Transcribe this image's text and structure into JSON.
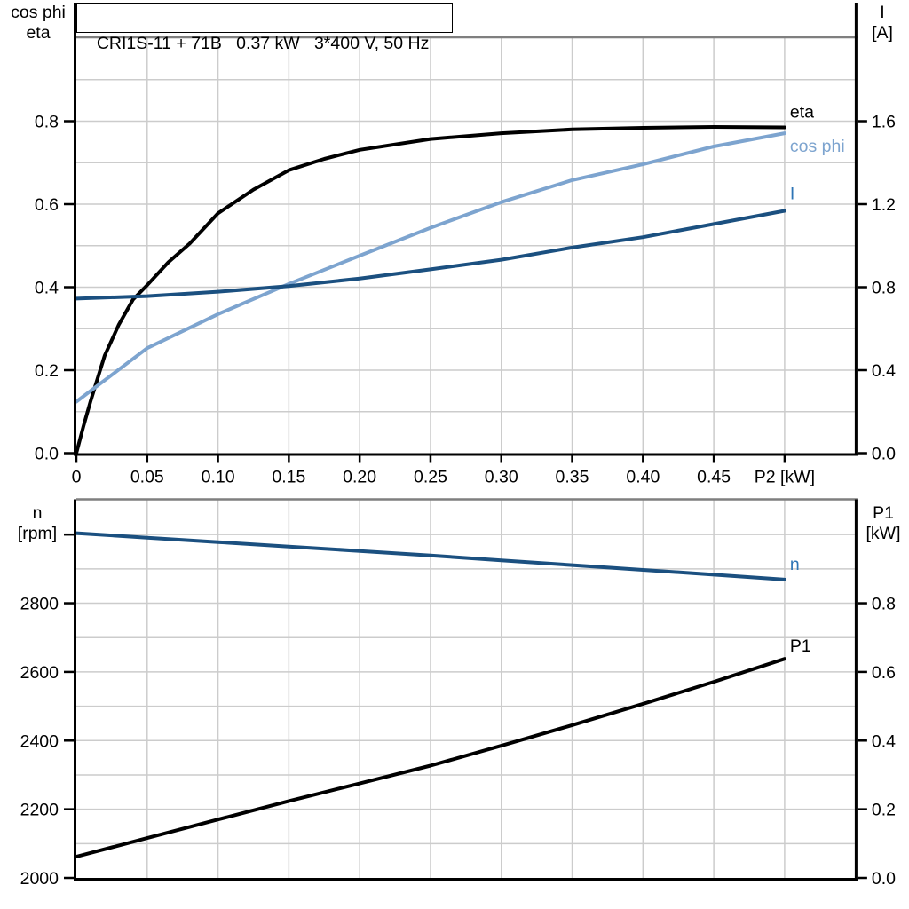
{
  "title": "CRI1S-11 + 71B   0.37 kW   3*400 V, 50 Hz",
  "colors": {
    "black": "#000000",
    "curve_dark_blue": "#1b5080",
    "curve_light_blue": "#7da4cf",
    "label_blue": "#2e74b5",
    "grid": "#cccccc",
    "plot_top_border": "#7f7f7f"
  },
  "chart_data": [
    {
      "type": "line",
      "title": "CRI1S-11 + 71B   0.37 kW   3*400 V, 50 Hz",
      "x_axis": {
        "label": "P2 [kW]",
        "min": 0,
        "max": 0.5495,
        "ticks": [
          {
            "v": 0,
            "label": "0"
          },
          {
            "v": 0.05,
            "label": "0.05"
          },
          {
            "v": 0.1,
            "label": "0.10"
          },
          {
            "v": 0.15,
            "label": "0.15"
          },
          {
            "v": 0.2,
            "label": "0.20"
          },
          {
            "v": 0.25,
            "label": "0.25"
          },
          {
            "v": 0.3,
            "label": "0.30"
          },
          {
            "v": 0.35,
            "label": "0.35"
          },
          {
            "v": 0.4,
            "label": "0.40"
          },
          {
            "v": 0.45,
            "label": "0.45"
          },
          {
            "v": 0.5,
            "label": "P2 [kW]"
          }
        ],
        "gridlines": [
          0.05,
          0.1,
          0.15,
          0.2,
          0.25,
          0.3,
          0.35,
          0.4,
          0.45,
          0.5
        ]
      },
      "y_axis_left": {
        "label_line1": "cos phi",
        "label_line2": "eta",
        "min": 0,
        "max": 1.0,
        "ticks": [
          {
            "v": 0.0,
            "label": "0.0"
          },
          {
            "v": 0.2,
            "label": "0.2"
          },
          {
            "v": 0.4,
            "label": "0.4"
          },
          {
            "v": 0.6,
            "label": "0.6"
          },
          {
            "v": 0.8,
            "label": "0.8"
          }
        ],
        "gridlines": [
          0.1,
          0.2,
          0.3,
          0.4,
          0.5,
          0.6,
          0.7,
          0.8,
          0.9
        ]
      },
      "y_axis_right": {
        "label_line1": "I",
        "label_line2": "[A]",
        "min": 0,
        "max": 2.0,
        "ticks": [
          {
            "v": 0.0,
            "label": "0.0"
          },
          {
            "v": 0.4,
            "label": "0.4"
          },
          {
            "v": 0.8,
            "label": "0.8"
          },
          {
            "v": 1.2,
            "label": "1.2"
          },
          {
            "v": 1.6,
            "label": "1.6"
          }
        ]
      },
      "series": [
        {
          "name": "eta",
          "axis": "left",
          "color": "#000000",
          "label_color": "#000000",
          "label_dy": -18,
          "x": [
            0,
            0.005,
            0.01,
            0.015,
            0.02,
            0.03,
            0.04,
            0.05,
            0.065,
            0.08,
            0.1,
            0.125,
            0.15,
            0.175,
            0.2,
            0.25,
            0.3,
            0.35,
            0.4,
            0.45,
            0.5
          ],
          "y": [
            0,
            0.065,
            0.125,
            0.18,
            0.235,
            0.31,
            0.37,
            0.405,
            0.46,
            0.505,
            0.578,
            0.635,
            0.682,
            0.709,
            0.731,
            0.757,
            0.771,
            0.78,
            0.784,
            0.786,
            0.785
          ]
        },
        {
          "name": "cos phi",
          "axis": "left",
          "color": "#7da4cf",
          "label_color": "#7da4cf",
          "label_dy": 14,
          "x": [
            0,
            0.05,
            0.1,
            0.15,
            0.2,
            0.25,
            0.3,
            0.35,
            0.4,
            0.45,
            0.5
          ],
          "y": [
            0.124,
            0.253,
            0.335,
            0.408,
            0.476,
            0.543,
            0.605,
            0.658,
            0.696,
            0.739,
            0.771
          ]
        },
        {
          "name": "I",
          "axis": "right",
          "color": "#1b5080",
          "label_color": "#2e74b5",
          "label_dy": -20,
          "x": [
            0,
            0.05,
            0.1,
            0.15,
            0.2,
            0.25,
            0.3,
            0.35,
            0.4,
            0.45,
            0.5
          ],
          "y": [
            0.745,
            0.757,
            0.778,
            0.805,
            0.842,
            0.886,
            0.932,
            0.991,
            1.041,
            1.104,
            1.168
          ]
        }
      ]
    },
    {
      "type": "line",
      "title": "",
      "x_axis": {
        "label": "",
        "min": 0,
        "max": 0.5495,
        "ticks": [],
        "gridlines": [
          0.05,
          0.1,
          0.15,
          0.2,
          0.25,
          0.3,
          0.35,
          0.4,
          0.45,
          0.5
        ]
      },
      "y_axis_left": {
        "label_line1": "n",
        "label_line2": "[rpm]",
        "min": 2000,
        "max": 3100,
        "ticks": [
          {
            "v": 2000,
            "label": "2000"
          },
          {
            "v": 2200,
            "label": "2200"
          },
          {
            "v": 2400,
            "label": "2400"
          },
          {
            "v": 2600,
            "label": "2600"
          },
          {
            "v": 2800,
            "label": "2800"
          },
          {
            "v": 3000,
            "label": ""
          }
        ],
        "gridlines": [
          2100,
          2200,
          2300,
          2400,
          2500,
          2600,
          2700,
          2800,
          2900,
          3000
        ]
      },
      "y_axis_right": {
        "label_line1": "P1",
        "label_line2": "[kW]",
        "min": 0,
        "max": 1.1,
        "ticks": [
          {
            "v": 0.0,
            "label": "0.0"
          },
          {
            "v": 0.2,
            "label": "0.2"
          },
          {
            "v": 0.4,
            "label": "0.4"
          },
          {
            "v": 0.6,
            "label": "0.6"
          },
          {
            "v": 0.8,
            "label": "0.8"
          }
        ]
      },
      "series": [
        {
          "name": "n",
          "axis": "left",
          "color": "#1b5080",
          "label_color": "#2e74b5",
          "label_dy": -18,
          "x": [
            0,
            0.05,
            0.1,
            0.15,
            0.2,
            0.25,
            0.3,
            0.35,
            0.4,
            0.45,
            0.5
          ],
          "y": [
            3004,
            2991,
            2978,
            2965,
            2952,
            2939,
            2925,
            2911,
            2897,
            2883,
            2869
          ]
        },
        {
          "name": "P1",
          "axis": "right",
          "color": "#000000",
          "label_color": "#000000",
          "label_dy": -15,
          "x": [
            0,
            0.05,
            0.1,
            0.15,
            0.2,
            0.25,
            0.3,
            0.35,
            0.4,
            0.45,
            0.5
          ],
          "y": [
            0.062,
            0.116,
            0.17,
            0.224,
            0.275,
            0.327,
            0.385,
            0.445,
            0.507,
            0.571,
            0.638
          ]
        }
      ]
    }
  ]
}
